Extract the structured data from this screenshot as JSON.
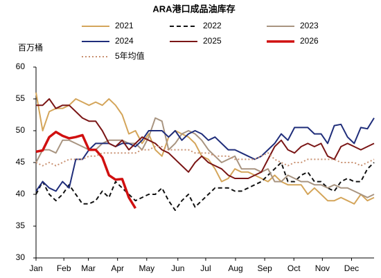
{
  "chart_data": {
    "type": "line",
    "title": "ARA港口成品油库存",
    "y_label": "百万桶",
    "x": [
      1,
      2,
      3,
      4,
      5,
      6,
      7,
      8,
      9,
      10,
      11,
      12,
      13,
      14,
      15,
      16,
      17,
      18,
      19,
      20,
      21,
      22,
      23,
      24,
      25,
      26,
      27,
      28,
      29,
      30,
      31,
      32,
      33,
      34,
      35,
      36,
      37,
      38,
      39,
      40,
      41,
      42,
      43,
      44,
      45,
      46,
      47,
      48,
      49,
      50,
      51,
      52
    ],
    "xlim": [
      1,
      52
    ],
    "xticks": [
      {
        "value": 1,
        "label": "Jan"
      },
      {
        "value": 5.2,
        "label": "Feb"
      },
      {
        "value": 8.9,
        "label": "Mar"
      },
      {
        "value": 13.3,
        "label": "Apr"
      },
      {
        "value": 17.7,
        "label": "May"
      },
      {
        "value": 22.4,
        "label": "Jun"
      },
      {
        "value": 26.6,
        "label": "Jul"
      },
      {
        "value": 31.1,
        "label": "Aug"
      },
      {
        "value": 35.5,
        "label": "Sep"
      },
      {
        "value": 39.9,
        "label": "Oct"
      },
      {
        "value": 44.2,
        "label": "Nov"
      },
      {
        "value": 48.6,
        "label": "Dec"
      }
    ],
    "ylim": [
      30,
      60
    ],
    "yticks": [
      30,
      35,
      40,
      45,
      50,
      55,
      60
    ],
    "grid": false,
    "series": [
      {
        "name": "2021",
        "color": "#d4a55a",
        "dash": "solid",
        "width": 2,
        "values": [
          56,
          50,
          53,
          53.5,
          53.5,
          54,
          55,
          54.5,
          54,
          54.5,
          54,
          55,
          54,
          52.5,
          49.5,
          50,
          48,
          49.5,
          47,
          46,
          49,
          50,
          49.5,
          49,
          48,
          46,
          45.5,
          44,
          42,
          42.5,
          44,
          43.5,
          43.5,
          43,
          42.5,
          42,
          43,
          42,
          41.5,
          41.5,
          41.5,
          40,
          41,
          40,
          39,
          39,
          39.5,
          39,
          38.5,
          40,
          39,
          39.5
        ]
      },
      {
        "name": "2022",
        "color": "#111111",
        "dash": "dashed",
        "width": 2,
        "values": [
          40,
          42,
          40,
          39,
          40,
          41.5,
          40,
          38.5,
          38.5,
          39,
          40.5,
          39.5,
          42,
          41,
          40,
          39,
          39.5,
          40,
          40,
          41,
          39,
          37.5,
          39,
          40,
          38,
          39,
          40,
          41,
          41,
          41,
          40.5,
          40.5,
          41,
          41.5,
          42,
          43,
          44,
          45,
          42,
          42,
          43,
          43.5,
          42,
          42,
          41,
          40.5,
          42,
          42.5,
          42,
          42,
          44,
          45
        ]
      },
      {
        "name": "2023",
        "color": "#a89480",
        "dash": "solid",
        "width": 2,
        "values": [
          45,
          47,
          47,
          46.5,
          48.5,
          48.5,
          48,
          47.5,
          47,
          47,
          48,
          48.5,
          48.5,
          48.5,
          48,
          48,
          47,
          49,
          52,
          51.5,
          47,
          48,
          49.5,
          50,
          49.5,
          48.5,
          47,
          46,
          45,
          45.5,
          46,
          44,
          44,
          44,
          43.5,
          44,
          42,
          42,
          43,
          42.5,
          42,
          42,
          41.5,
          41.5,
          41,
          41.5,
          41,
          41,
          40.5,
          40,
          39.5,
          40
        ]
      },
      {
        "name": "2024",
        "color": "#1f2d7a",
        "dash": "solid",
        "width": 2,
        "values": [
          40.5,
          42,
          41,
          40.5,
          42,
          41,
          45.5,
          45.5,
          47,
          48,
          48,
          48,
          47.5,
          48,
          48,
          47.5,
          48.5,
          50,
          50,
          50,
          49,
          50,
          48.5,
          49.5,
          50,
          49.5,
          48.5,
          49,
          48,
          47,
          47,
          46.5,
          46,
          45.5,
          46,
          47,
          48,
          49.5,
          48.5,
          50.5,
          50.5,
          50.5,
          49.5,
          49.5,
          48,
          50.8,
          51,
          49,
          48,
          50.5,
          50.3,
          52
        ]
      },
      {
        "name": "2025",
        "color": "#7a1515",
        "dash": "solid",
        "width": 2,
        "values": [
          54,
          54,
          55,
          53.5,
          54,
          54,
          53,
          52,
          51.5,
          51.5,
          50,
          48,
          47.5,
          48.5,
          47,
          48,
          49,
          48.5,
          48,
          47,
          46.5,
          45.5,
          44.5,
          43.5,
          45,
          46,
          45,
          44.5,
          44,
          43,
          42.5,
          42.5,
          42.5,
          43,
          43.5,
          45.5,
          47.5,
          48.5,
          47,
          46.5,
          47.5,
          48,
          47.5,
          48,
          46,
          45.5,
          47.5,
          48,
          47.5,
          47,
          47.5,
          48
        ]
      },
      {
        "name": "2026",
        "color": "#d01010",
        "dash": "solid",
        "width": 3.5,
        "values": [
          46.7,
          46.9,
          49,
          49.8,
          49.2,
          48.8,
          49,
          49.3,
          47,
          47,
          45.8,
          43,
          42.3,
          42.4,
          39.5,
          37.8,
          null,
          null,
          null,
          null,
          null,
          null,
          null,
          null,
          null,
          null,
          null,
          null,
          null,
          null,
          null,
          null,
          null,
          null,
          null,
          null,
          null,
          null,
          null,
          null,
          null,
          null,
          null,
          null,
          null,
          null,
          null,
          null,
          null,
          null,
          null,
          null
        ]
      },
      {
        "name": "5年均值",
        "color": "#c89070",
        "dash": "dotted",
        "width": 2,
        "values": [
          45,
          44.5,
          45,
          44.5,
          45,
          45.5,
          45.5,
          45.5,
          46,
          46,
          46.5,
          46.5,
          46.5,
          46.5,
          46.5,
          46.5,
          47,
          47,
          47.5,
          47.5,
          47,
          47,
          47,
          47,
          46.5,
          46.5,
          46.5,
          46,
          46,
          46,
          45.5,
          45.5,
          45.5,
          45.5,
          46,
          46.5,
          45.5,
          45,
          44.5,
          45,
          45,
          45.5,
          45.5,
          45.5,
          45.5,
          45.5,
          45,
          45,
          45,
          44.5,
          45,
          45.5
        ]
      }
    ]
  }
}
